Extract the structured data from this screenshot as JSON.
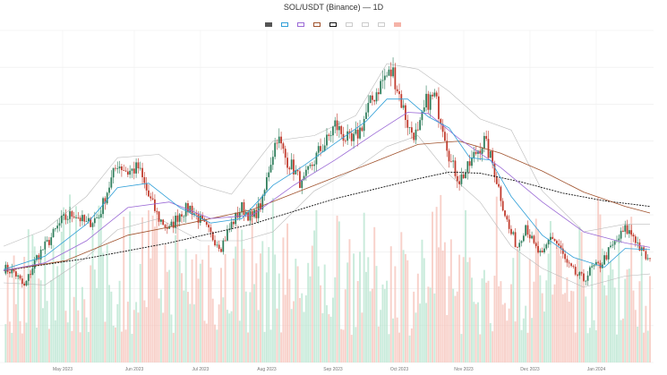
{
  "chart_data": {
    "type": "candlestick",
    "title": "SOL/USDT (Binance) — 1D",
    "subtitle": "",
    "xlabel": "",
    "ylabel": "",
    "legend": [
      {
        "name": "",
        "color": "#555555"
      },
      {
        "name": "",
        "color": "#2f9fd8"
      },
      {
        "name": "",
        "color": "#9b6ad6"
      },
      {
        "name": "",
        "color": "#a0522d"
      },
      {
        "name": "",
        "color": "#111111"
      },
      {
        "name": "",
        "color": "#cccccc"
      },
      {
        "name": "",
        "color": "#cccccc"
      },
      {
        "name": "",
        "color": "#cccccc"
      },
      {
        "name": "",
        "color": "#f5b3a8"
      }
    ],
    "legend_position": "top-center",
    "grid": true,
    "yaxis_side": "right",
    "yticks": [
      "",
      "",
      "",
      "",
      "",
      "",
      "",
      "",
      "",
      ""
    ],
    "xticks": [
      "May 2023",
      "Jun 2023",
      "Jul 2023",
      "Aug 2023",
      "Sep 2023",
      "Oct 2023",
      "Nov 2023",
      "Dec 2023",
      "Jan 2024"
    ],
    "colors": {
      "up": "#2e7d5b",
      "down": "#c0392b",
      "vol_up": "#b7e4cf",
      "vol_down": "#f5c1b8",
      "ema_fast": "#2f9fd8",
      "ema_mid": "#9b6ad6",
      "ema_slow": "#a0522d",
      "sma_long": "#111111",
      "band": "#bbbbbb"
    },
    "price_path": [
      [
        0,
        18.5
      ],
      [
        5,
        18.2
      ],
      [
        10,
        16.8
      ],
      [
        16,
        19.5
      ],
      [
        22,
        21.0
      ],
      [
        28,
        22.8
      ],
      [
        34,
        23.5
      ],
      [
        40,
        22.5
      ],
      [
        46,
        23.2
      ],
      [
        50,
        25.5
      ],
      [
        55,
        28.0
      ],
      [
        60,
        27.2
      ],
      [
        65,
        27.6
      ],
      [
        70,
        25.0
      ],
      [
        75,
        23.0
      ],
      [
        80,
        22.0
      ],
      [
        85,
        23.5
      ],
      [
        90,
        24.0
      ],
      [
        95,
        22.8
      ],
      [
        100,
        21.5
      ],
      [
        105,
        20.5
      ],
      [
        110,
        22.5
      ],
      [
        115,
        24.0
      ],
      [
        120,
        23.0
      ],
      [
        125,
        24.5
      ],
      [
        128,
        27.5
      ],
      [
        132,
        30.5
      ],
      [
        136,
        28.5
      ],
      [
        140,
        27.5
      ],
      [
        144,
        26.0
      ],
      [
        148,
        27.5
      ],
      [
        152,
        29.0
      ],
      [
        156,
        30.0
      ],
      [
        160,
        31.5
      ],
      [
        164,
        30.5
      ],
      [
        168,
        29.8
      ],
      [
        172,
        31.0
      ],
      [
        176,
        33.0
      ],
      [
        180,
        34.5
      ],
      [
        184,
        35.8
      ],
      [
        188,
        36.2
      ],
      [
        192,
        33.5
      ],
      [
        196,
        31.0
      ],
      [
        200,
        30.5
      ],
      [
        204,
        33.5
      ],
      [
        208,
        34.0
      ],
      [
        212,
        31.5
      ],
      [
        216,
        28.0
      ],
      [
        220,
        26.5
      ],
      [
        224,
        27.5
      ],
      [
        228,
        29.0
      ],
      [
        232,
        30.0
      ],
      [
        236,
        28.0
      ],
      [
        240,
        25.0
      ],
      [
        244,
        22.0
      ],
      [
        248,
        20.5
      ],
      [
        252,
        22.5
      ],
      [
        256,
        20.5
      ],
      [
        260,
        19.5
      ],
      [
        264,
        21.5
      ],
      [
        268,
        20.5
      ],
      [
        272,
        18.8
      ],
      [
        276,
        18.0
      ],
      [
        280,
        17.5
      ],
      [
        284,
        18.5
      ],
      [
        288,
        18.8
      ],
      [
        292,
        20.0
      ],
      [
        296,
        21.0
      ],
      [
        300,
        22.0
      ],
      [
        304,
        21.5
      ],
      [
        308,
        20.0
      ],
      [
        312,
        19.0
      ]
    ],
    "ema_fast_path": [
      [
        0,
        18.4
      ],
      [
        20,
        19.6
      ],
      [
        40,
        22.5
      ],
      [
        55,
        25.8
      ],
      [
        70,
        26.2
      ],
      [
        85,
        24.0
      ],
      [
        100,
        22.6
      ],
      [
        115,
        23.0
      ],
      [
        130,
        26.0
      ],
      [
        145,
        27.8
      ],
      [
        160,
        29.8
      ],
      [
        175,
        31.8
      ],
      [
        185,
        33.8
      ],
      [
        195,
        33.8
      ],
      [
        205,
        32.2
      ],
      [
        215,
        31.2
      ],
      [
        225,
        28.5
      ],
      [
        235,
        28.3
      ],
      [
        245,
        25.0
      ],
      [
        260,
        21.5
      ],
      [
        275,
        19.5
      ],
      [
        290,
        18.6
      ],
      [
        300,
        20.3
      ],
      [
        312,
        20.2
      ]
    ],
    "ema_mid_path": [
      [
        0,
        18.3
      ],
      [
        20,
        19.0
      ],
      [
        40,
        21.0
      ],
      [
        60,
        24.0
      ],
      [
        80,
        24.5
      ],
      [
        100,
        23.0
      ],
      [
        120,
        23.3
      ],
      [
        140,
        26.0
      ],
      [
        160,
        28.3
      ],
      [
        180,
        30.8
      ],
      [
        195,
        32.6
      ],
      [
        205,
        32.5
      ],
      [
        220,
        30.2
      ],
      [
        240,
        27.6
      ],
      [
        260,
        24.5
      ],
      [
        280,
        21.8
      ],
      [
        300,
        20.8
      ],
      [
        312,
        20.4
      ]
    ],
    "ema_slow_path": [
      [
        0,
        18.3
      ],
      [
        30,
        19.2
      ],
      [
        60,
        21.5
      ],
      [
        90,
        22.6
      ],
      [
        120,
        23.8
      ],
      [
        150,
        26.0
      ],
      [
        180,
        28.2
      ],
      [
        200,
        29.7
      ],
      [
        220,
        30.0
      ],
      [
        240,
        28.9
      ],
      [
        260,
        27.3
      ],
      [
        280,
        25.4
      ],
      [
        300,
        24.1
      ],
      [
        312,
        23.5
      ]
    ],
    "sma_long_path": [
      [
        0,
        18.3
      ],
      [
        40,
        19.4
      ],
      [
        80,
        20.8
      ],
      [
        120,
        22.5
      ],
      [
        160,
        24.8
      ],
      [
        200,
        26.6
      ],
      [
        215,
        27.2
      ],
      [
        230,
        27.1
      ],
      [
        250,
        26.3
      ],
      [
        270,
        25.3
      ],
      [
        290,
        24.6
      ],
      [
        312,
        24.1
      ]
    ],
    "bb_upper_path": [
      [
        0,
        20.5
      ],
      [
        20,
        22.0
      ],
      [
        40,
        25.0
      ],
      [
        55,
        28.5
      ],
      [
        75,
        28.8
      ],
      [
        95,
        26.0
      ],
      [
        110,
        25.2
      ],
      [
        130,
        30.0
      ],
      [
        150,
        30.5
      ],
      [
        170,
        32.3
      ],
      [
        185,
        37.0
      ],
      [
        200,
        36.5
      ],
      [
        215,
        34.5
      ],
      [
        230,
        32.0
      ],
      [
        245,
        31.0
      ],
      [
        260,
        25.5
      ],
      [
        280,
        21.8
      ],
      [
        300,
        22.5
      ],
      [
        312,
        22.5
      ]
    ],
    "bb_lower_path": [
      [
        0,
        17.2
      ],
      [
        20,
        17.0
      ],
      [
        40,
        19.5
      ],
      [
        55,
        22.0
      ],
      [
        75,
        23.0
      ],
      [
        95,
        21.0
      ],
      [
        115,
        21.0
      ],
      [
        130,
        21.8
      ],
      [
        150,
        25.5
      ],
      [
        170,
        27.5
      ],
      [
        185,
        29.5
      ],
      [
        200,
        30.5
      ],
      [
        215,
        27.0
      ],
      [
        230,
        24.5
      ],
      [
        245,
        20.5
      ],
      [
        260,
        18.5
      ],
      [
        280,
        16.8
      ],
      [
        300,
        17.8
      ],
      [
        312,
        18.0
      ]
    ]
  }
}
